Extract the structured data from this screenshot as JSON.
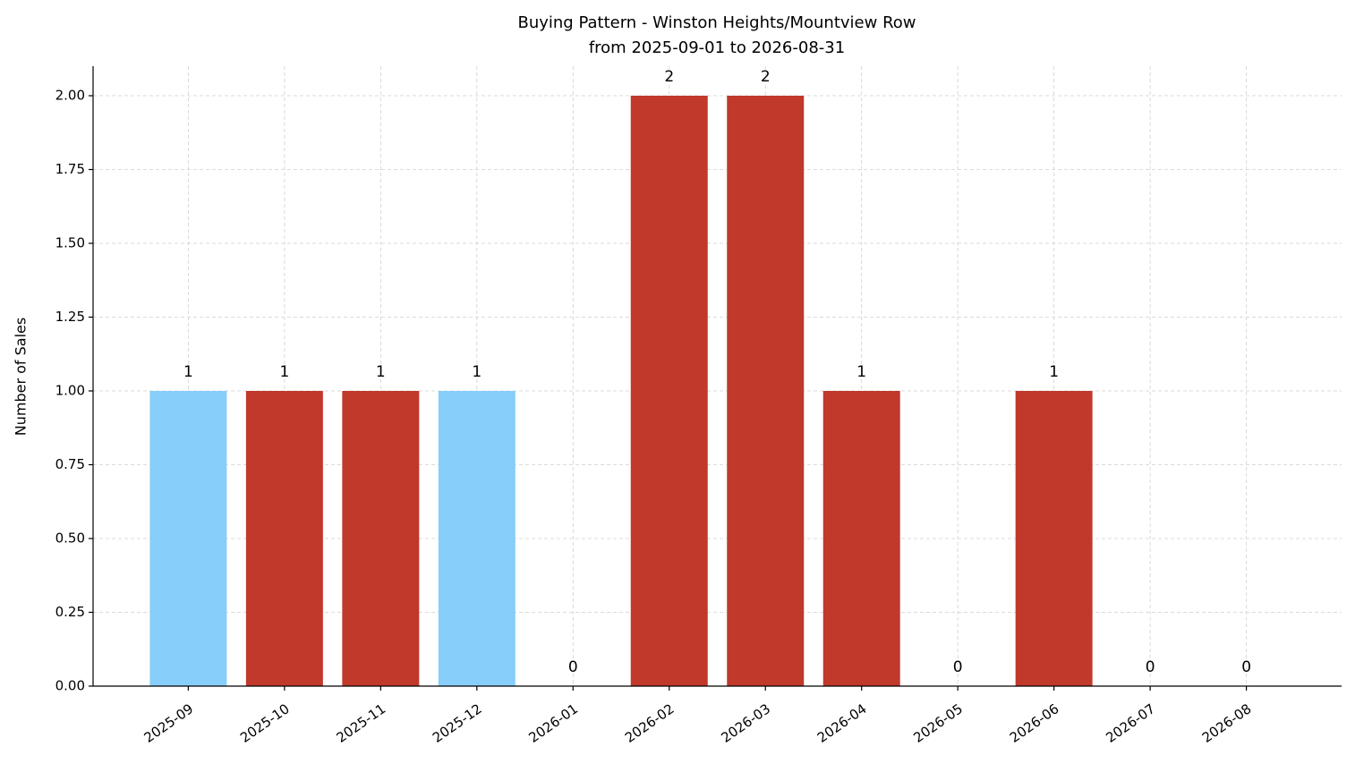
{
  "chart_data": {
    "type": "bar",
    "title": "Buying Pattern - Winston Heights/Mountview Row",
    "subtitle": "from 2025-09-01 to 2026-08-31",
    "y_label": "Number of Sales",
    "categories": [
      "2025-09",
      "2025-10",
      "2025-11",
      "2025-12",
      "2026-01",
      "2026-02",
      "2026-03",
      "2026-04",
      "2026-05",
      "2026-06",
      "2026-07",
      "2026-08"
    ],
    "values": [
      1,
      1,
      1,
      1,
      0,
      2,
      2,
      1,
      0,
      1,
      0,
      0
    ],
    "colors": [
      "#87cefa",
      "#c0392b",
      "#c0392b",
      "#87cefa",
      "#c0392b",
      "#c0392b",
      "#c0392b",
      "#c0392b",
      "#c0392b",
      "#c0392b",
      "#c0392b",
      "#c0392b"
    ],
    "ylim": [
      0,
      2.1
    ],
    "yticks": [
      {
        "value": 0,
        "label": "0.00"
      },
      {
        "value": 0.25,
        "label": "0.25"
      },
      {
        "value": 0.5,
        "label": "0.50"
      },
      {
        "value": 0.75,
        "label": "0.75"
      },
      {
        "value": 1,
        "label": "1.00"
      },
      {
        "value": 1.25,
        "label": "1.25"
      },
      {
        "value": 1.5,
        "label": "1.50"
      },
      {
        "value": 1.75,
        "label": "1.75"
      },
      {
        "value": 2,
        "label": "2.00"
      }
    ],
    "grid": true
  }
}
